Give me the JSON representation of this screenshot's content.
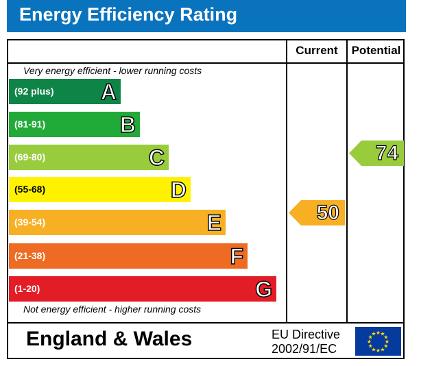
{
  "title": "Energy Efficiency Rating",
  "headers": {
    "current": "Current",
    "potential": "Potential"
  },
  "notes": {
    "top": "Very energy efficient - lower running costs",
    "bottom": "Not energy efficient - higher running costs"
  },
  "footer": {
    "region": "England & Wales",
    "directive_line1": "EU Directive",
    "directive_line2": "2002/91/EC"
  },
  "colors": {
    "title_bar": "#0a73bd",
    "A": "#0e8446",
    "B": "#22aa38",
    "C": "#98cc3c",
    "D": "#fff200",
    "E": "#f7b024",
    "F": "#ee6b24",
    "G": "#e31d26",
    "eu_flag": "#063b9e",
    "eu_stars": "#ffde00"
  },
  "chart_data": {
    "type": "bar",
    "bands": [
      {
        "letter": "A",
        "range": "(92 plus)"
      },
      {
        "letter": "B",
        "range": "(81-91)"
      },
      {
        "letter": "C",
        "range": "(69-80)"
      },
      {
        "letter": "D",
        "range": "(55-68)"
      },
      {
        "letter": "E",
        "range": "(39-54)"
      },
      {
        "letter": "F",
        "range": "(21-38)"
      },
      {
        "letter": "G",
        "range": "(1-20)"
      }
    ],
    "current": {
      "value": 50,
      "band": "E"
    },
    "potential": {
      "value": 74,
      "band": "C"
    }
  }
}
